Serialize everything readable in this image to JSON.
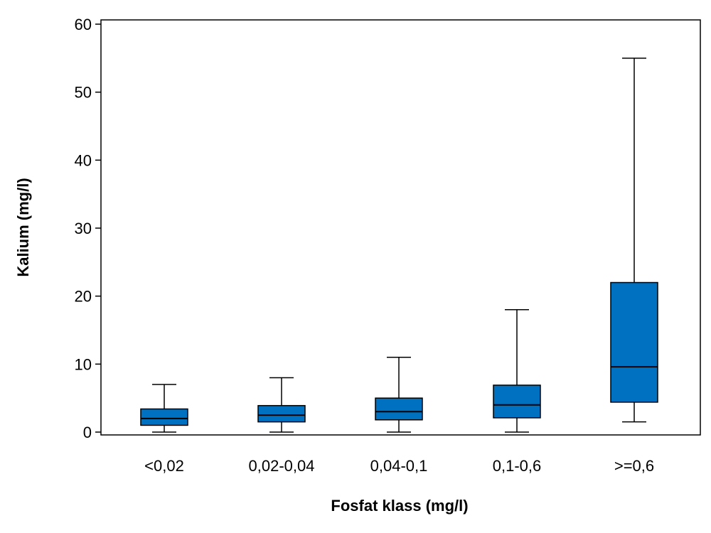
{
  "chart_data": {
    "type": "boxplot",
    "xlabel": "Fosfat klass (mg/l)",
    "ylabel": "Kalium (mg/l)",
    "ylim": [
      0,
      60
    ],
    "yticks": [
      0,
      10,
      20,
      30,
      40,
      50,
      60
    ],
    "ytick_labels": [
      "0",
      "10",
      "20",
      "30",
      "40",
      "50",
      "60"
    ],
    "categories": [
      "<0,02",
      "0,02-0,04",
      "0,04-0,1",
      "0,1-0,6",
      ">=0,6"
    ],
    "boxes": [
      {
        "category": "<0,02",
        "whisker_low": 0,
        "q1": 1.0,
        "median": 2.0,
        "q3": 3.4,
        "whisker_high": 7
      },
      {
        "category": "0,02-0,04",
        "whisker_low": 0,
        "q1": 1.5,
        "median": 2.5,
        "q3": 3.9,
        "whisker_high": 8
      },
      {
        "category": "0,04-0,1",
        "whisker_low": 0,
        "q1": 1.8,
        "median": 3.0,
        "q3": 5.0,
        "whisker_high": 11
      },
      {
        "category": "0,1-0,6",
        "whisker_low": 0,
        "q1": 2.1,
        "median": 4.0,
        "q3": 6.9,
        "whisker_high": 18
      },
      {
        "category": ">=0,6",
        "whisker_low": 1.5,
        "q1": 4.4,
        "median": 9.6,
        "q3": 22.0,
        "whisker_high": 55
      }
    ],
    "box_color": "#0070C0",
    "grid": false,
    "legend": "none"
  }
}
